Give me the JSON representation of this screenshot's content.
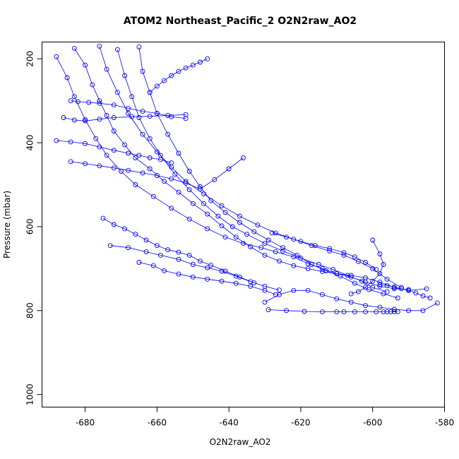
{
  "chart_data": {
    "type": "line",
    "title": "ATOM2 Northeast_Pacific_2 O2N2raw_AO2",
    "xlabel": "O2N2raw_AO2",
    "ylabel": "Pressure (mbar)",
    "xlim": [
      -692,
      -580
    ],
    "ylim": [
      1030,
      160
    ],
    "y_reversed": true,
    "x_ticks": [
      -680,
      -660,
      -640,
      -620,
      -600,
      -580
    ],
    "x_tick_labels": [
      "-680",
      "-660",
      "-640",
      "-620",
      "-600",
      "-580"
    ],
    "y_ticks": [
      200,
      400,
      600,
      800,
      1000
    ],
    "y_tick_labels": [
      "200",
      "400",
      "600",
      "800",
      "1000"
    ],
    "grid": false,
    "legend": "none",
    "series_color": "#0000ff",
    "marker": "open-circle",
    "series": [
      {
        "x": [
          -683,
          -680,
          -678,
          -676,
          -674,
          -672,
          -669,
          -666,
          -662,
          -658,
          -654,
          -650,
          -646,
          -642,
          -638,
          -634,
          -630,
          -626,
          -622,
          -618,
          -614,
          -610,
          -606,
          -602,
          -598,
          -594,
          -590
        ],
        "y": [
          175,
          215,
          262,
          300,
          335,
          372,
          405,
          436,
          462,
          492,
          518,
          545,
          570,
          598,
          625,
          648,
          668,
          682,
          693,
          700,
          707,
          712,
          720,
          732,
          742,
          748,
          750
        ]
      },
      {
        "x": [
          -688,
          -685,
          -683,
          -680,
          -677,
          -674,
          -670,
          -666,
          -661,
          -656,
          -651,
          -646,
          -641,
          -636,
          -631,
          -627,
          -622,
          -618,
          -614,
          -610,
          -606,
          -602,
          -598,
          -594,
          -590,
          -585
        ],
        "y": [
          195,
          245,
          290,
          345,
          390,
          430,
          468,
          500,
          528,
          556,
          582,
          605,
          625,
          640,
          650,
          660,
          672,
          688,
          700,
          712,
          716,
          722,
          732,
          745,
          752,
          748
        ]
      },
      {
        "x": [
          -676,
          -674,
          -671,
          -668,
          -664,
          -660,
          -656,
          -652,
          -647,
          -642,
          -637,
          -632,
          -627,
          -622,
          -617,
          -612,
          -608,
          -604,
          -600,
          -596,
          -592
        ],
        "y": [
          170,
          225,
          280,
          330,
          380,
          422,
          458,
          492,
          522,
          550,
          575,
          596,
          615,
          630,
          645,
          658,
          668,
          683,
          700,
          725,
          745
        ]
      },
      {
        "x": [
          -671,
          -669,
          -667,
          -665,
          -662,
          -659,
          -655,
          -651,
          -647,
          -643,
          -639,
          -635,
          -630,
          -625,
          -620,
          -615,
          -611,
          -607,
          -603,
          -600,
          -596
        ],
        "y": [
          178,
          240,
          290,
          340,
          390,
          430,
          475,
          512,
          545,
          575,
          600,
          618,
          640,
          658,
          675,
          690,
          702,
          716,
          730,
          745,
          755
        ]
      },
      {
        "x": [
          -665,
          -664,
          -662,
          -660,
          -657,
          -654,
          -651,
          -648,
          -645,
          -641,
          -637,
          -633,
          -629,
          -625,
          -621,
          -617,
          -613,
          -609,
          -605,
          -601,
          -597,
          -593
        ],
        "y": [
          172,
          230,
          280,
          330,
          380,
          425,
          468,
          505,
          538,
          566,
          590,
          612,
          632,
          650,
          668,
          690,
          705,
          718,
          735,
          750,
          760,
          770
        ]
      },
      {
        "x": [
          -675,
          -672,
          -669,
          -666,
          -663,
          -660,
          -657,
          -654,
          -651,
          -648,
          -645,
          -641,
          -637,
          -633
        ],
        "y": [
          580,
          595,
          605,
          618,
          632,
          645,
          655,
          661,
          668,
          682,
          692,
          706,
          720,
          734
        ]
      },
      {
        "x": [
          -673,
          -668,
          -663,
          -659,
          -654,
          -650,
          -646,
          -642,
          -638,
          -634,
          -630,
          -626
        ],
        "y": [
          645,
          650,
          660,
          668,
          678,
          690,
          698,
          706,
          718,
          731,
          742,
          751
        ]
      },
      {
        "x": [
          -665,
          -661,
          -658,
          -654,
          -650,
          -646,
          -642,
          -638,
          -634,
          -630,
          -627
        ],
        "y": [
          685,
          693,
          705,
          713,
          720,
          725,
          730,
          735,
          742,
          752,
          762
        ]
      },
      {
        "x": [
          -630,
          -626,
          -622,
          -618,
          -614,
          -610,
          -606,
          -602,
          -598,
          -594,
          -590,
          -586,
          -582
        ],
        "y": [
          780,
          762,
          752,
          752,
          762,
          772,
          780,
          788,
          792,
          797,
          800,
          800,
          782
        ]
      },
      {
        "x": [
          -629,
          -624,
          -619,
          -614,
          -610,
          -608,
          -605,
          -602,
          -599,
          -597,
          -596,
          -595,
          -594,
          -593
        ],
        "y": [
          798,
          800,
          802,
          803,
          803,
          803,
          803,
          803,
          803,
          803,
          803,
          803,
          803,
          803
        ]
      },
      {
        "x": [
          -686,
          -683,
          -680,
          -676,
          -672,
          -667,
          -662,
          -657,
          -652
        ],
        "y": [
          340,
          346,
          348,
          344,
          340,
          338,
          337,
          335,
          333
        ]
      },
      {
        "x": [
          -684,
          -682,
          -679,
          -676,
          -672,
          -668,
          -664,
          -660,
          -656,
          -652
        ],
        "y": [
          300,
          302,
          304,
          306,
          310,
          318,
          325,
          330,
          338,
          342
        ]
      },
      {
        "x": [
          -684,
          -680,
          -676,
          -672,
          -668,
          -664,
          -660,
          -656,
          -652,
          -648,
          -644,
          -640,
          -636
        ],
        "y": [
          445,
          450,
          455,
          460,
          466,
          472,
          478,
          486,
          496,
          510,
          488,
          462,
          436
        ]
      },
      {
        "x": [
          -688,
          -684,
          -680,
          -676,
          -672,
          -668,
          -665,
          -662,
          -659,
          -656
        ],
        "y": [
          395,
          398,
          402,
          410,
          418,
          425,
          430,
          436,
          440,
          448
        ]
      },
      {
        "x": [
          -662,
          -660,
          -658,
          -656,
          -654,
          -652,
          -650,
          -648,
          -646
        ],
        "y": [
          280,
          265,
          252,
          240,
          230,
          222,
          215,
          208,
          200
        ]
      },
      {
        "x": [
          -600,
          -598,
          -597,
          -598,
          -600,
          -602,
          -604,
          -606
        ],
        "y": [
          632,
          665,
          690,
          712,
          730,
          745,
          755,
          760
        ]
      },
      {
        "x": [
          -628,
          -624,
          -620,
          -616,
          -612,
          -608,
          -605,
          -602,
          -599
        ],
        "y": [
          615,
          625,
          635,
          645,
          652,
          662,
          672,
          685,
          702
        ]
      },
      {
        "x": [
          -584,
          -586,
          -588,
          -590,
          -592,
          -594,
          -596,
          -598
        ],
        "y": [
          770,
          765,
          758,
          752,
          748,
          744,
          740,
          738
        ]
      }
    ]
  }
}
